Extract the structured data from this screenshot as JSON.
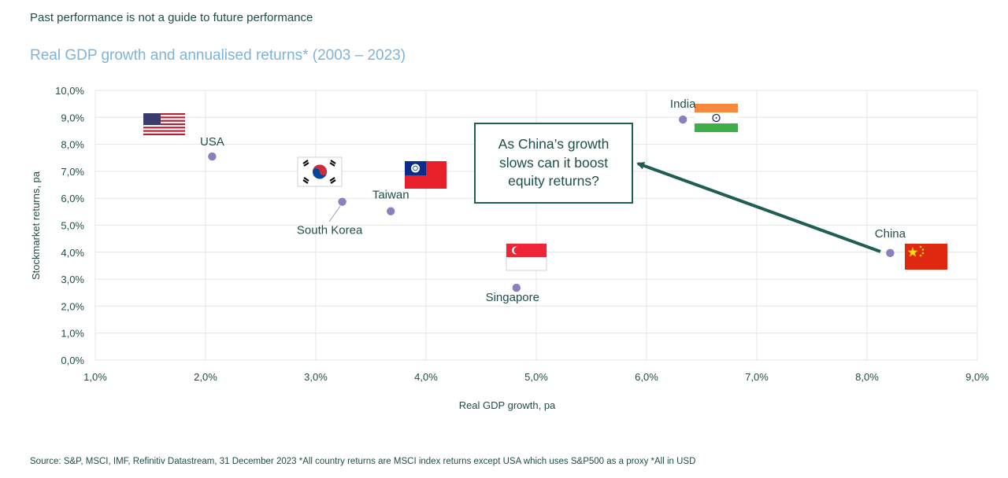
{
  "header": {
    "disclaimer": "Past performance is not a guide to future performance",
    "title": "Real GDP growth and annualised returns* (2003 – 2023)"
  },
  "callout": {
    "text": "As China’s growth slows can it boost equity returns?"
  },
  "footer": {
    "source": "Source: S&P, MSCI, IMF, Refinitiv Datastream, 31 December 2023 *All country returns are MSCI index returns except USA which uses S&P500 as a proxy *All in USD"
  },
  "colors": {
    "point": "#8c7fbf",
    "axis_text": "#1f4e4a",
    "title": "#7fb3d8",
    "arrow": "#1f5e55",
    "grid": "#e4e4e4"
  },
  "flags": [
    "usa-flag-icon",
    "south-korea-flag-icon",
    "taiwan-flag-icon",
    "singapore-flag-icon",
    "india-flag-icon",
    "china-flag-icon"
  ],
  "chart_data": {
    "type": "scatter",
    "title": "Real GDP growth and annualised returns* (2003 – 2023)",
    "xlabel": "Real GDP growth, pa",
    "ylabel": "Stockmarket returns, pa",
    "xlim": [
      1.0,
      9.0
    ],
    "ylim": [
      0.0,
      10.0
    ],
    "x_ticks": [
      "1,0%",
      "2,0%",
      "3,0%",
      "4,0%",
      "5,0%",
      "6,0%",
      "7,0%",
      "8,0%",
      "9,0%"
    ],
    "y_ticks": [
      "0,0%",
      "1,0%",
      "2,0%",
      "3,0%",
      "4,0%",
      "5,0%",
      "6,0%",
      "7,0%",
      "8,0%",
      "9,0%",
      "10,0%"
    ],
    "grid": true,
    "points": [
      {
        "label": "USA",
        "x": 2.06,
        "y": 7.55
      },
      {
        "label": "South Korea",
        "x": 3.24,
        "y": 5.87
      },
      {
        "label": "Taiwan",
        "x": 3.68,
        "y": 5.52
      },
      {
        "label": "Singapore",
        "x": 4.82,
        "y": 2.68
      },
      {
        "label": "India",
        "x": 6.33,
        "y": 8.92
      },
      {
        "label": "China",
        "x": 8.21,
        "y": 3.97
      }
    ]
  }
}
